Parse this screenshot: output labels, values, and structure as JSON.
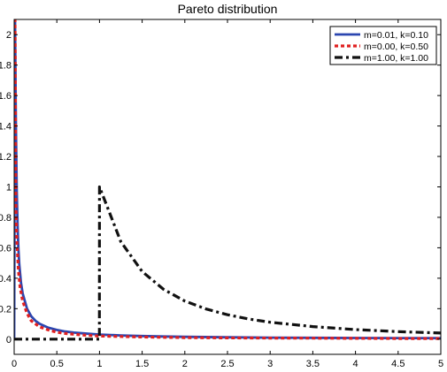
{
  "chart_data": {
    "type": "line",
    "title": "Pareto distribution",
    "xlabel": "",
    "ylabel": "",
    "xlim": [
      0,
      5
    ],
    "ylim": [
      -0.1,
      2.1
    ],
    "grid": false,
    "legend_position": "top-right",
    "xticks": [
      0,
      0.5,
      1,
      1.5,
      2,
      2.5,
      3,
      3.5,
      4,
      4.5,
      5
    ],
    "xtick_labels": [
      "0",
      "0.5",
      "1",
      "1.5",
      "2",
      "2.5",
      "3",
      "3.5",
      "4",
      "4.5",
      "5"
    ],
    "yticks": [
      0,
      0.2,
      0.4,
      0.6,
      0.8,
      1,
      1.2,
      1.4,
      1.6,
      1.8,
      2
    ],
    "ytick_labels": [
      "0",
      "0.2",
      "0.4",
      "0.6",
      "0.8",
      "1",
      "1.2",
      "1.4",
      "1.6",
      "1.8",
      "2"
    ],
    "series": [
      {
        "name": "m=0.01, k=0.10",
        "color": "#2b46b0",
        "style": "solid",
        "x": [
          0.0,
          0.01,
          0.02,
          0.03,
          0.04,
          0.05,
          0.06,
          0.08,
          0.1,
          0.15,
          0.2,
          0.25,
          0.3,
          0.4,
          0.5,
          0.6,
          0.7,
          0.8,
          1.0,
          1.25,
          1.5,
          1.75,
          2.0,
          2.5,
          3.0,
          3.5,
          4.0,
          4.5,
          5.0
        ],
        "y": [
          0.0,
          2.1,
          1.44,
          0.98,
          0.74,
          0.59,
          0.49,
          0.37,
          0.3,
          0.2,
          0.15,
          0.12,
          0.1,
          0.075,
          0.06,
          0.05,
          0.043,
          0.038,
          0.03,
          0.024,
          0.02,
          0.017,
          0.015,
          0.012,
          0.01,
          0.0086,
          0.0075,
          0.0067,
          0.006
        ]
      },
      {
        "name": "m=0.00, k=0.50",
        "color": "#e02020",
        "style": "dotted",
        "x": [
          0.0,
          0.01,
          0.02,
          0.03,
          0.05,
          0.07,
          0.1,
          0.15,
          0.2,
          0.3,
          0.4,
          0.5,
          0.6,
          0.8,
          1.0,
          1.5,
          2.0,
          2.5,
          3.0,
          3.5,
          4.0,
          4.5,
          5.0
        ],
        "y": [
          2.1,
          2.1,
          0.9,
          0.66,
          0.45,
          0.34,
          0.25,
          0.17,
          0.12,
          0.08,
          0.06,
          0.045,
          0.037,
          0.027,
          0.02,
          0.014,
          0.01,
          0.008,
          0.007,
          0.006,
          0.005,
          0.004,
          0.004
        ]
      },
      {
        "name": "m=1.00, k=1.00",
        "color": "#111111",
        "style": "dashdot",
        "x": [
          0.0,
          0.999,
          1.0,
          1.25,
          1.5,
          1.75,
          2.0,
          2.25,
          2.5,
          2.75,
          3.0,
          3.5,
          4.0,
          4.5,
          5.0
        ],
        "y": [
          0.0,
          0.0,
          1.0,
          0.64,
          0.444,
          0.327,
          0.25,
          0.198,
          0.16,
          0.132,
          0.111,
          0.082,
          0.0625,
          0.049,
          0.04
        ]
      }
    ]
  }
}
